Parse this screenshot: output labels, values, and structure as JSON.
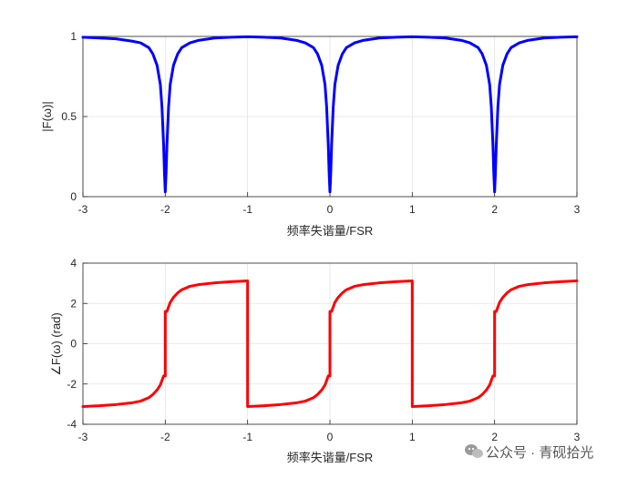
{
  "chart_data": [
    {
      "type": "line",
      "title": "",
      "xlabel": "频率失谐量/FSR",
      "ylabel": "|F(ω)|",
      "xlim": [
        -3,
        3
      ],
      "ylim": [
        0,
        1
      ],
      "xticks": [
        "-3",
        "-2",
        "-1",
        "0",
        "1",
        "2",
        "3"
      ],
      "yticks": [
        "0",
        "0.5",
        "1"
      ],
      "grid": true,
      "series": [
        {
          "color": "#0000ff",
          "points": [
            [
              -3.0,
              0.995
            ],
            [
              -2.8,
              0.99
            ],
            [
              -2.6,
              0.985
            ],
            [
              -2.4,
              0.97
            ],
            [
              -2.3,
              0.96
            ],
            [
              -2.2,
              0.93
            ],
            [
              -2.15,
              0.89
            ],
            [
              -2.1,
              0.82
            ],
            [
              -2.06,
              0.7
            ],
            [
              -2.04,
              0.56
            ],
            [
              -2.02,
              0.32
            ],
            [
              -2.01,
              0.15
            ],
            [
              -2.0,
              0.03
            ],
            [
              -1.99,
              0.15
            ],
            [
              -1.98,
              0.32
            ],
            [
              -1.96,
              0.56
            ],
            [
              -1.94,
              0.7
            ],
            [
              -1.9,
              0.82
            ],
            [
              -1.85,
              0.89
            ],
            [
              -1.8,
              0.93
            ],
            [
              -1.7,
              0.96
            ],
            [
              -1.6,
              0.975
            ],
            [
              -1.4,
              0.99
            ],
            [
              -1.2,
              0.995
            ],
            [
              -1.0,
              0.998
            ],
            [
              -0.8,
              0.995
            ],
            [
              -0.6,
              0.99
            ],
            [
              -0.4,
              0.975
            ],
            [
              -0.3,
              0.96
            ],
            [
              -0.2,
              0.93
            ],
            [
              -0.15,
              0.89
            ],
            [
              -0.1,
              0.82
            ],
            [
              -0.06,
              0.7
            ],
            [
              -0.04,
              0.56
            ],
            [
              -0.02,
              0.32
            ],
            [
              -0.01,
              0.15
            ],
            [
              0.0,
              0.03
            ],
            [
              0.01,
              0.15
            ],
            [
              0.02,
              0.32
            ],
            [
              0.04,
              0.56
            ],
            [
              0.06,
              0.7
            ],
            [
              0.1,
              0.82
            ],
            [
              0.15,
              0.89
            ],
            [
              0.2,
              0.93
            ],
            [
              0.3,
              0.96
            ],
            [
              0.4,
              0.975
            ],
            [
              0.6,
              0.99
            ],
            [
              0.8,
              0.995
            ],
            [
              1.0,
              0.998
            ],
            [
              1.2,
              0.995
            ],
            [
              1.4,
              0.99
            ],
            [
              1.6,
              0.975
            ],
            [
              1.7,
              0.96
            ],
            [
              1.8,
              0.93
            ],
            [
              1.85,
              0.89
            ],
            [
              1.9,
              0.82
            ],
            [
              1.94,
              0.7
            ],
            [
              1.96,
              0.56
            ],
            [
              1.98,
              0.32
            ],
            [
              1.99,
              0.15
            ],
            [
              2.0,
              0.03
            ],
            [
              2.01,
              0.15
            ],
            [
              2.02,
              0.32
            ],
            [
              2.04,
              0.56
            ],
            [
              2.06,
              0.7
            ],
            [
              2.1,
              0.82
            ],
            [
              2.15,
              0.89
            ],
            [
              2.2,
              0.93
            ],
            [
              2.3,
              0.96
            ],
            [
              2.4,
              0.975
            ],
            [
              2.6,
              0.99
            ],
            [
              2.8,
              0.995
            ],
            [
              3.0,
              0.998
            ]
          ]
        }
      ]
    },
    {
      "type": "line",
      "title": "",
      "xlabel": "频率失谐量/FSR",
      "ylabel": "∠F(ω) (rad)",
      "xlim": [
        -3,
        3
      ],
      "ylim": [
        -4,
        4
      ],
      "xticks": [
        "-3",
        "-2",
        "-1",
        "0",
        "1",
        "2",
        "3"
      ],
      "yticks": [
        "-4",
        "-2",
        "0",
        "2",
        "4"
      ],
      "grid": true,
      "series": [
        {
          "color": "#ff0000",
          "points": [
            [
              -3.0,
              -3.12
            ],
            [
              -2.8,
              -3.08
            ],
            [
              -2.6,
              -3.02
            ],
            [
              -2.4,
              -2.93
            ],
            [
              -2.3,
              -2.85
            ],
            [
              -2.2,
              -2.68
            ],
            [
              -2.15,
              -2.52
            ],
            [
              -2.1,
              -2.3
            ],
            [
              -2.06,
              -2.05
            ],
            [
              -2.02,
              -1.6
            ],
            [
              -2.0,
              -1.6
            ],
            [
              -2.0,
              1.6
            ],
            [
              -1.98,
              1.6
            ],
            [
              -1.94,
              2.05
            ],
            [
              -1.9,
              2.3
            ],
            [
              -1.85,
              2.52
            ],
            [
              -1.8,
              2.68
            ],
            [
              -1.7,
              2.85
            ],
            [
              -1.6,
              2.93
            ],
            [
              -1.4,
              3.02
            ],
            [
              -1.2,
              3.08
            ],
            [
              -1.0,
              3.12
            ],
            [
              -1.0,
              -3.12
            ],
            [
              -0.8,
              -3.08
            ],
            [
              -0.6,
              -3.02
            ],
            [
              -0.4,
              -2.93
            ],
            [
              -0.3,
              -2.85
            ],
            [
              -0.2,
              -2.68
            ],
            [
              -0.15,
              -2.52
            ],
            [
              -0.1,
              -2.3
            ],
            [
              -0.06,
              -2.05
            ],
            [
              -0.02,
              -1.6
            ],
            [
              0.0,
              -1.6
            ],
            [
              0.0,
              1.6
            ],
            [
              0.02,
              1.6
            ],
            [
              0.06,
              2.05
            ],
            [
              0.1,
              2.3
            ],
            [
              0.15,
              2.52
            ],
            [
              0.2,
              2.68
            ],
            [
              0.3,
              2.85
            ],
            [
              0.4,
              2.93
            ],
            [
              0.6,
              3.02
            ],
            [
              0.8,
              3.08
            ],
            [
              1.0,
              3.12
            ],
            [
              1.0,
              -3.12
            ],
            [
              1.2,
              -3.08
            ],
            [
              1.4,
              -3.02
            ],
            [
              1.6,
              -2.93
            ],
            [
              1.7,
              -2.85
            ],
            [
              1.8,
              -2.68
            ],
            [
              1.85,
              -2.52
            ],
            [
              1.9,
              -2.3
            ],
            [
              1.94,
              -2.05
            ],
            [
              1.98,
              -1.6
            ],
            [
              2.0,
              -1.6
            ],
            [
              2.0,
              1.6
            ],
            [
              2.02,
              1.6
            ],
            [
              2.06,
              2.05
            ],
            [
              2.1,
              2.3
            ],
            [
              2.15,
              2.52
            ],
            [
              2.2,
              2.68
            ],
            [
              2.3,
              2.85
            ],
            [
              2.4,
              2.93
            ],
            [
              2.6,
              3.02
            ],
            [
              2.8,
              3.08
            ],
            [
              3.0,
              3.12
            ]
          ]
        }
      ]
    }
  ],
  "watermark": {
    "text": "公众号 · 青砚拾光",
    "icon": "wechat-icon"
  }
}
